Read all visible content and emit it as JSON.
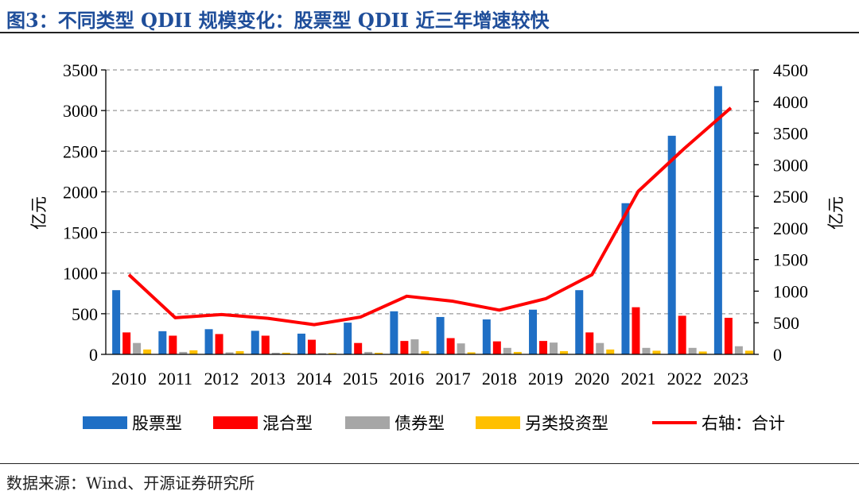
{
  "figure_title": "图3：不同类型 QDII 规模变化：股票型 QDII 近三年增速较快",
  "source_text": "数据来源：Wind、开源证券研究所",
  "chart_data": {
    "type": "bar",
    "categories": [
      "2010",
      "2011",
      "2012",
      "2013",
      "2014",
      "2015",
      "2016",
      "2017",
      "2018",
      "2019",
      "2020",
      "2021",
      "2022",
      "2023"
    ],
    "series": [
      {
        "name": "股票型",
        "color": "#1f6fc5",
        "values": [
          790,
          285,
          310,
          290,
          255,
          390,
          530,
          460,
          430,
          550,
          790,
          1860,
          2690,
          3300
        ]
      },
      {
        "name": "混合型",
        "color": "#ff0000",
        "values": [
          270,
          230,
          250,
          230,
          180,
          140,
          165,
          200,
          160,
          165,
          270,
          580,
          475,
          450
        ]
      },
      {
        "name": "债券型",
        "color": "#a6a6a6",
        "values": [
          140,
          30,
          25,
          20,
          15,
          30,
          185,
          135,
          80,
          145,
          140,
          80,
          80,
          100
        ]
      },
      {
        "name": "另类投资型",
        "color": "#ffc000",
        "values": [
          60,
          50,
          40,
          20,
          15,
          20,
          40,
          25,
          30,
          40,
          60,
          45,
          35,
          45
        ]
      }
    ],
    "line": {
      "name": "右轴：合计",
      "color": "#ff0000",
      "axis": "right",
      "values": [
        1260,
        580,
        630,
        570,
        470,
        590,
        920,
        840,
        700,
        880,
        1260,
        2580,
        3260,
        3900
      ]
    },
    "yaxis_left": {
      "label": "亿元",
      "min": 0,
      "max": 3500,
      "ticks": [
        0,
        500,
        1000,
        1500,
        2000,
        2500,
        3000,
        3500
      ]
    },
    "yaxis_right": {
      "label": "亿元",
      "min": 0,
      "max": 4500,
      "ticks": [
        0,
        500,
        1000,
        1500,
        2000,
        2500,
        3000,
        3500,
        4000,
        4500
      ]
    },
    "grid": true,
    "legend_position": "bottom"
  }
}
